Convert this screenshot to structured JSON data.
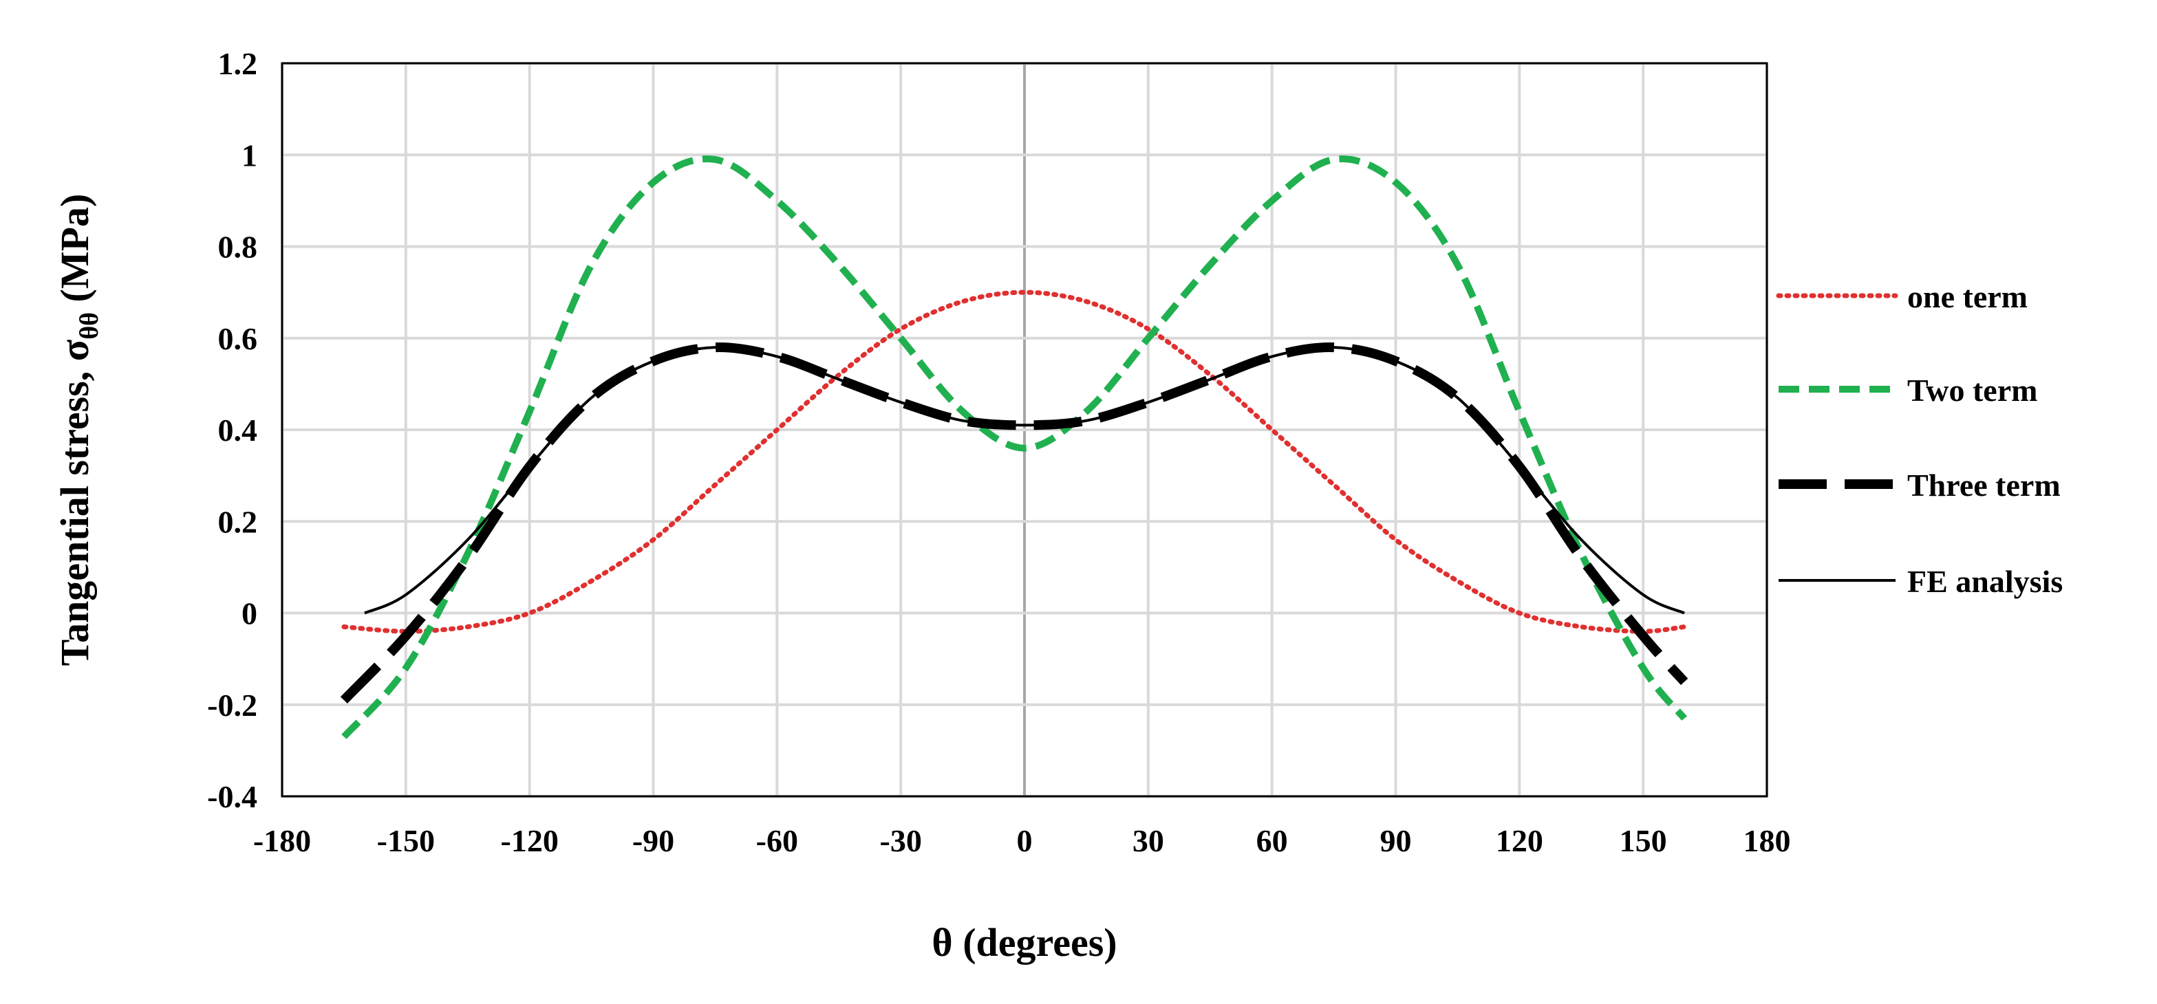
{
  "chart_data": {
    "type": "line",
    "title": "",
    "xlabel": "θ (degrees)",
    "ylabel_main": "Tangential stress, σ",
    "ylabel_sub": "θθ",
    "ylabel_unit": " (MPa)",
    "xlim": [
      -180,
      180
    ],
    "ylim": [
      -0.4,
      1.2
    ],
    "xticks": [
      -180,
      -150,
      -120,
      -90,
      -60,
      -30,
      0,
      30,
      60,
      90,
      120,
      150,
      180
    ],
    "yticks": [
      -0.4,
      -0.2,
      0,
      0.2,
      0.4,
      0.6,
      0.8,
      1,
      1.2
    ],
    "xtick_labels": [
      "-180",
      "-150",
      "-120",
      "-90",
      "-60",
      "-30",
      "0",
      "30",
      "60",
      "90",
      "120",
      "150",
      "180"
    ],
    "ytick_labels": [
      "-0.4",
      "-0.2",
      "0",
      "0.2",
      "0.4",
      "0.6",
      "0.8",
      "1",
      "1.2"
    ],
    "grid": true,
    "legend_position": "right",
    "series": [
      {
        "name": "one term",
        "color": "#e03030",
        "style": "dotted",
        "x": [
          -165,
          -150,
          -135,
          -120,
          -105,
          -90,
          -75,
          -60,
          -45,
          -30,
          -15,
          0,
          15,
          30,
          45,
          60,
          75,
          90,
          105,
          120,
          135,
          150,
          160
        ],
        "y": [
          -0.03,
          -0.04,
          -0.03,
          0.0,
          0.07,
          0.16,
          0.28,
          0.4,
          0.52,
          0.62,
          0.68,
          0.7,
          0.68,
          0.62,
          0.52,
          0.4,
          0.28,
          0.16,
          0.07,
          0.0,
          -0.03,
          -0.04,
          -0.03
        ]
      },
      {
        "name": "Two term",
        "color": "#20b050",
        "style": "dashed",
        "x": [
          -165,
          -150,
          -135,
          -120,
          -105,
          -90,
          -75,
          -60,
          -45,
          -30,
          -15,
          0,
          15,
          30,
          45,
          60,
          75,
          90,
          105,
          120,
          135,
          150,
          160
        ],
        "y": [
          -0.27,
          -0.12,
          0.13,
          0.44,
          0.76,
          0.94,
          0.99,
          0.9,
          0.76,
          0.6,
          0.44,
          0.36,
          0.44,
          0.6,
          0.76,
          0.9,
          0.99,
          0.94,
          0.76,
          0.44,
          0.13,
          -0.12,
          -0.23
        ]
      },
      {
        "name": "Three term",
        "color": "#000000",
        "style": "longdash",
        "x": [
          -165,
          -150,
          -135,
          -120,
          -105,
          -90,
          -75,
          -60,
          -45,
          -30,
          -15,
          0,
          15,
          30,
          45,
          60,
          75,
          90,
          105,
          120,
          135,
          150,
          160
        ],
        "y": [
          -0.19,
          -0.05,
          0.12,
          0.32,
          0.47,
          0.55,
          0.58,
          0.56,
          0.51,
          0.46,
          0.42,
          0.41,
          0.42,
          0.46,
          0.51,
          0.56,
          0.58,
          0.55,
          0.47,
          0.32,
          0.12,
          -0.05,
          -0.15
        ]
      },
      {
        "name": "FE analysis",
        "color": "#000000",
        "style": "solid",
        "x": [
          -160,
          -150,
          -135,
          -120,
          -105,
          -90,
          -75,
          -60,
          -45,
          -30,
          -15,
          0,
          15,
          30,
          45,
          60,
          75,
          90,
          105,
          120,
          135,
          150,
          160
        ],
        "y": [
          0.0,
          0.04,
          0.16,
          0.32,
          0.47,
          0.55,
          0.58,
          0.56,
          0.51,
          0.46,
          0.42,
          0.41,
          0.42,
          0.46,
          0.51,
          0.56,
          0.58,
          0.55,
          0.47,
          0.32,
          0.16,
          0.04,
          0.0
        ]
      }
    ]
  }
}
